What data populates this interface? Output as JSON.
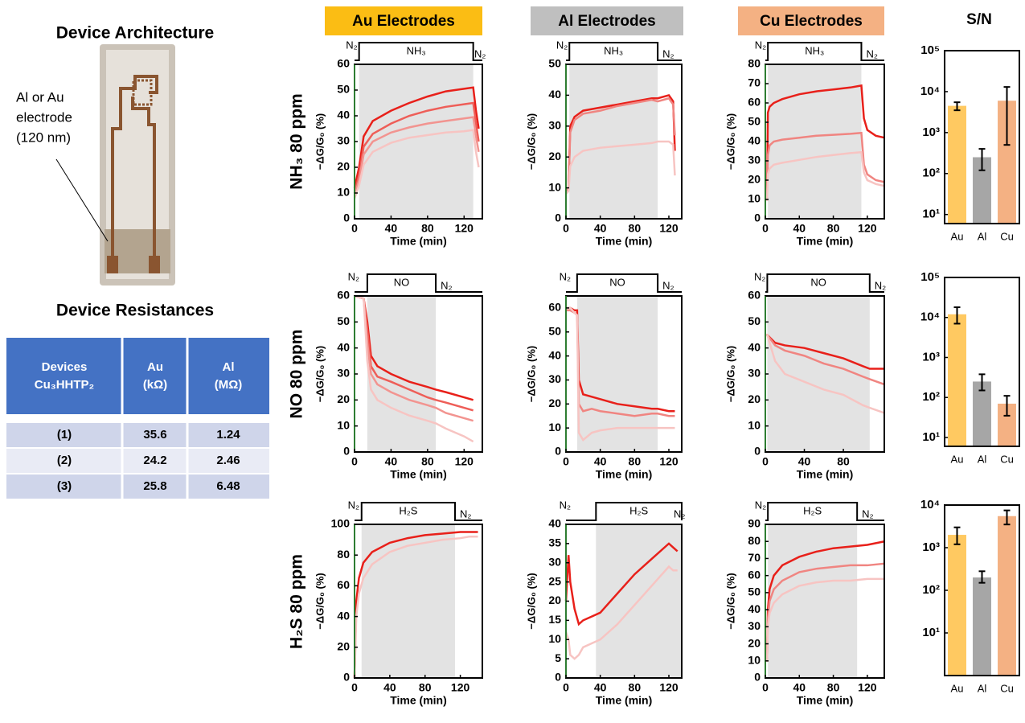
{
  "texts": {
    "architecture": "Device Architecture",
    "electrode_note": [
      "Al or Au",
      "electrode",
      "(120 nm)"
    ],
    "resistances": "Device Resistances"
  },
  "columns": [
    "Au Electrodes",
    "Al Electrodes",
    "Cu Electrodes",
    "S/N"
  ],
  "rows": [
    "NH₃ 80 ppm",
    "NO 80 ppm",
    "H₂S 80 ppm"
  ],
  "table": {
    "header": [
      [
        "Devices",
        "Cu₃HHTP₂"
      ],
      [
        "Au",
        "(kΩ)"
      ],
      [
        "Al",
        "(MΩ)"
      ]
    ],
    "rows": [
      [
        "(1)",
        "35.6",
        "1.24"
      ],
      [
        "(2)",
        "24.2",
        "2.46"
      ],
      [
        "(3)",
        "25.8",
        "6.48"
      ]
    ]
  },
  "chart_data": [
    {
      "type": "line",
      "xlabel": "Time (min)",
      "ylabel": "−ΔG/G₀ (%)",
      "gas_labels": [
        "N₂",
        "NH₃",
        "N₂"
      ],
      "exposure": [
        5,
        130
      ],
      "xlim": [
        0,
        140
      ],
      "xticks": [
        0,
        40,
        80,
        120
      ],
      "ylim": [
        0,
        60
      ],
      "yticks": [
        0,
        10,
        20,
        30,
        40,
        50,
        60
      ],
      "x": [
        0,
        5,
        10,
        20,
        40,
        60,
        80,
        100,
        120,
        130,
        133,
        136
      ],
      "series": [
        {
          "color": "#e8201a",
          "values": [
            12,
            20,
            32,
            38,
            42,
            45,
            47.5,
            49.5,
            50.5,
            51,
            42,
            35
          ]
        },
        {
          "color": "#ee5e58",
          "values": [
            10,
            17,
            28,
            33,
            37,
            40,
            42,
            43.5,
            44.5,
            45,
            37,
            30
          ]
        },
        {
          "color": "#f29490",
          "values": [
            9,
            15,
            25,
            30,
            33.5,
            35.5,
            37,
            38,
            39,
            39.5,
            32,
            26
          ]
        },
        {
          "color": "#f7c4c2",
          "values": [
            8,
            13,
            21,
            26,
            29.5,
            31.5,
            32.5,
            33.5,
            34,
            34.5,
            26,
            20
          ]
        }
      ]
    },
    {
      "type": "line",
      "xlabel": "Time (min)",
      "ylabel": "−ΔG/G₀ (%)",
      "gas_labels": [
        "N₂",
        "NH₃",
        "N₂"
      ],
      "exposure": [
        4,
        107
      ],
      "xlim": [
        0,
        135
      ],
      "xticks": [
        0,
        40,
        80,
        120
      ],
      "ylim": [
        0,
        50
      ],
      "yticks": [
        0,
        10,
        20,
        30,
        40,
        50
      ],
      "x": [
        0,
        3,
        5,
        10,
        20,
        40,
        60,
        80,
        100,
        107,
        120,
        125,
        127
      ],
      "series": [
        {
          "color": "#e8201a",
          "values": [
            9,
            10,
            30,
            33,
            35,
            36,
            37,
            38,
            39,
            39,
            40,
            38,
            22
          ]
        },
        {
          "color": "#f08581",
          "values": [
            9,
            10,
            28,
            32,
            34,
            35,
            36.5,
            37.5,
            38.5,
            38,
            39,
            37,
            27
          ]
        },
        {
          "color": "#f7c4c2",
          "values": [
            8,
            9,
            17,
            20,
            22,
            23,
            23.5,
            24,
            24.5,
            25,
            25,
            24,
            14
          ]
        }
      ]
    },
    {
      "type": "line",
      "xlabel": "Time (min)",
      "ylabel": "−ΔG/G₀ (%)",
      "gas_labels": [
        "N₂",
        "NH₃",
        "N₂"
      ],
      "exposure": [
        3,
        113
      ],
      "xlim": [
        0,
        140
      ],
      "xticks": [
        0,
        40,
        80,
        120
      ],
      "ylim": [
        0,
        80
      ],
      "yticks": [
        0,
        10,
        20,
        30,
        40,
        50,
        60,
        70,
        80
      ],
      "x": [
        0,
        2,
        3,
        5,
        10,
        20,
        40,
        60,
        80,
        100,
        113,
        116,
        120,
        130,
        140
      ],
      "series": [
        {
          "color": "#e8201a",
          "values": [
            10,
            10,
            55,
            58,
            60,
            62,
            64.5,
            66,
            67,
            68,
            69,
            52,
            46,
            43,
            42
          ]
        },
        {
          "color": "#f08581",
          "values": [
            10,
            10,
            33,
            38,
            40,
            41,
            42,
            43,
            43.5,
            44,
            44.5,
            28,
            23,
            20,
            19
          ]
        },
        {
          "color": "#f7c4c2",
          "values": [
            10,
            10,
            23,
            26,
            28,
            29,
            30.5,
            32,
            33,
            34,
            34.5,
            24,
            20,
            18,
            17
          ]
        }
      ]
    },
    {
      "type": "line",
      "xlabel": "Time (min)",
      "ylabel": "−ΔG/G₀ (%)",
      "gas_labels": [
        "N₂",
        "NO",
        "N₂"
      ],
      "exposure": [
        14,
        89
      ],
      "xlim": [
        0,
        140
      ],
      "xticks": [
        0,
        40,
        80,
        120
      ],
      "ylim": [
        0,
        60
      ],
      "yticks": [
        0,
        10,
        20,
        30,
        40,
        50,
        60
      ],
      "x": [
        0,
        10,
        14,
        18,
        25,
        40,
        60,
        80,
        89,
        100,
        120,
        130
      ],
      "series": [
        {
          "color": "#e8201a",
          "values": [
            60,
            59,
            50,
            37,
            33,
            30,
            27,
            25,
            24,
            23,
            21,
            20
          ]
        },
        {
          "color": "#ee5e58",
          "values": [
            60,
            59,
            47,
            33,
            29,
            27,
            24,
            21,
            20,
            19,
            17,
            16
          ]
        },
        {
          "color": "#f29490",
          "values": [
            60,
            59,
            42,
            30,
            26,
            23,
            20,
            18,
            17,
            15,
            13,
            12
          ]
        },
        {
          "color": "#f7c4c2",
          "values": [
            60,
            59,
            35,
            24,
            20,
            17,
            14,
            12,
            11,
            9,
            6,
            4
          ]
        }
      ]
    },
    {
      "type": "line",
      "xlabel": "Time (min)",
      "ylabel": "−ΔG/G₀ (%)",
      "gas_labels": [
        "N₂",
        "NO",
        "N₂"
      ],
      "exposure": [
        13,
        107
      ],
      "xlim": [
        0,
        135
      ],
      "xticks": [
        0,
        40,
        80,
        120
      ],
      "ylim": [
        0,
        65
      ],
      "yticks": [
        0,
        10,
        20,
        30,
        40,
        50,
        60
      ],
      "x": [
        0,
        5,
        10,
        13,
        15,
        20,
        30,
        40,
        60,
        80,
        100,
        107,
        120,
        127
      ],
      "series": [
        {
          "color": "#e8201a",
          "values": [
            60,
            60,
            59,
            59,
            30,
            24,
            23,
            22,
            20,
            19,
            18,
            18,
            17,
            17
          ]
        },
        {
          "color": "#f08581",
          "values": [
            59,
            59,
            58,
            57,
            20,
            17,
            18,
            17,
            16,
            15,
            16,
            16,
            15,
            15
          ]
        },
        {
          "color": "#f7c4c2",
          "values": [
            60,
            60,
            58,
            57,
            8,
            5,
            8,
            9,
            10,
            10,
            10,
            10,
            10,
            10
          ]
        }
      ]
    },
    {
      "type": "line",
      "xlabel": "Time (min)",
      "ylabel": "−ΔG/G₀ (%)",
      "gas_labels": [
        "N₂",
        "NO",
        "N₂"
      ],
      "exposure": [
        2,
        107
      ],
      "xlim": [
        0,
        122
      ],
      "xticks": [
        0,
        40,
        80
      ],
      "ylim": [
        0,
        60
      ],
      "yticks": [
        0,
        10,
        20,
        30,
        40,
        50,
        60
      ],
      "x": [
        0,
        2,
        10,
        20,
        40,
        60,
        80,
        100,
        107,
        122
      ],
      "series": [
        {
          "color": "#e8201a",
          "values": [
            45,
            45,
            42,
            41,
            40,
            38,
            36,
            33,
            32,
            32
          ]
        },
        {
          "color": "#f08581",
          "values": [
            45,
            45,
            41,
            39,
            37,
            34,
            32,
            29,
            28,
            26
          ]
        },
        {
          "color": "#f7c4c2",
          "values": [
            45,
            45,
            35,
            30,
            27,
            24,
            22,
            18,
            17,
            15
          ]
        }
      ]
    },
    {
      "type": "line",
      "xlabel": "Time (min)",
      "ylabel": "−ΔG/G₀ (%)",
      "gas_labels": [
        "N₂",
        "H₂S",
        "N₂"
      ],
      "exposure": [
        8,
        114
      ],
      "xlim": [
        0,
        145
      ],
      "xticks": [
        0,
        40,
        80,
        120
      ],
      "ylim": [
        0,
        100
      ],
      "yticks": [
        0,
        20,
        40,
        60,
        80,
        100
      ],
      "x": [
        0,
        2,
        5,
        10,
        20,
        40,
        60,
        80,
        100,
        120,
        130,
        140
      ],
      "series": [
        {
          "color": "#e8201a",
          "values": [
            0,
            50,
            65,
            75,
            82,
            88,
            91,
            93,
            94,
            95,
            95,
            95
          ]
        },
        {
          "color": "#f7c4c2",
          "values": [
            0,
            40,
            55,
            65,
            74,
            82,
            86,
            88,
            90,
            91,
            92,
            92
          ]
        }
      ]
    },
    {
      "type": "line",
      "xlabel": "Time (min)",
      "ylabel": "−ΔG/G₀ (%)",
      "gas_labels": [
        "N₂",
        "H₂S",
        "N₂"
      ],
      "exposure": [
        35,
        135
      ],
      "xlim": [
        0,
        135
      ],
      "xticks": [
        0,
        40,
        80,
        120
      ],
      "ylim": [
        0,
        40
      ],
      "yticks": [
        0,
        5,
        10,
        15,
        20,
        25,
        30,
        35,
        40
      ],
      "x": [
        0,
        3,
        5,
        10,
        15,
        20,
        30,
        40,
        60,
        80,
        100,
        120,
        125,
        130
      ],
      "series": [
        {
          "color": "#e8201a",
          "values": [
            20,
            32,
            25,
            18,
            14,
            15,
            16,
            17,
            22,
            27,
            31,
            35,
            34,
            33
          ]
        },
        {
          "color": "#f7c4c2",
          "values": [
            12,
            10,
            6,
            5,
            6,
            8,
            9,
            10,
            14,
            19,
            24,
            29,
            28,
            28
          ]
        }
      ]
    },
    {
      "type": "line",
      "xlabel": "Time (min)",
      "ylabel": "−ΔG/G₀ (%)",
      "gas_labels": [
        "N₂",
        "H₂S",
        "N₂"
      ],
      "exposure": [
        3,
        108
      ],
      "xlim": [
        0,
        140
      ],
      "xticks": [
        0,
        40,
        80,
        120
      ],
      "ylim": [
        0,
        90
      ],
      "yticks": [
        0,
        10,
        20,
        30,
        40,
        50,
        60,
        70,
        80,
        90
      ],
      "x": [
        0,
        2,
        3,
        5,
        10,
        20,
        40,
        60,
        80,
        100,
        120,
        140
      ],
      "series": [
        {
          "color": "#e8201a",
          "values": [
            10,
            10,
            40,
            52,
            60,
            66,
            71,
            74,
            76,
            77,
            78,
            80
          ]
        },
        {
          "color": "#f08581",
          "values": [
            10,
            10,
            35,
            45,
            52,
            57,
            62,
            64,
            65,
            66,
            66,
            67
          ]
        },
        {
          "color": "#f7c4c2",
          "values": [
            10,
            10,
            30,
            38,
            44,
            49,
            54,
            56,
            57,
            57,
            58,
            58
          ]
        }
      ]
    },
    {
      "type": "bar",
      "log_scale": true,
      "categories": [
        "Au",
        "Al",
        "Cu"
      ],
      "colors": [
        "#ffc961",
        "#a6a6a6",
        "#f4b183"
      ],
      "values": [
        4500,
        250,
        6000
      ],
      "error_range": [
        [
          3500,
          5500
        ],
        [
          120,
          400
        ],
        [
          500,
          13000
        ]
      ],
      "ylim": [
        6,
        100000
      ],
      "yticks": [
        {
          "value": 10,
          "label": "10¹"
        },
        {
          "value": 100,
          "label": "10²"
        },
        {
          "value": 1000,
          "label": "10³"
        },
        {
          "value": 10000,
          "label": "10⁴"
        },
        {
          "value": 100000,
          "label": "10⁵"
        }
      ]
    },
    {
      "type": "bar",
      "log_scale": true,
      "categories": [
        "Au",
        "Al",
        "Cu"
      ],
      "colors": [
        "#ffc961",
        "#a6a6a6",
        "#f4b183"
      ],
      "values": [
        12000,
        250,
        70
      ],
      "error_range": [
        [
          7000,
          18000
        ],
        [
          150,
          380
        ],
        [
          35,
          110
        ]
      ],
      "ylim": [
        6,
        100000
      ],
      "yticks": [
        {
          "value": 10,
          "label": "10¹"
        },
        {
          "value": 100,
          "label": "10²"
        },
        {
          "value": 1000,
          "label": "10³"
        },
        {
          "value": 10000,
          "label": "10⁴"
        },
        {
          "value": 100000,
          "label": "10⁵"
        }
      ]
    },
    {
      "type": "bar",
      "log_scale": true,
      "categories": [
        "Au",
        "Al",
        "Cu"
      ],
      "colors": [
        "#ffc961",
        "#a6a6a6",
        "#f4b183"
      ],
      "values": [
        2000,
        200,
        5500
      ],
      "error_range": [
        [
          1200,
          3000
        ],
        [
          150,
          280
        ],
        [
          3500,
          7500
        ]
      ],
      "ylim": [
        1,
        10000
      ],
      "yticks": [
        {
          "value": 10,
          "label": "10¹"
        },
        {
          "value": 100,
          "label": "10²"
        },
        {
          "value": 1000,
          "label": "10³"
        },
        {
          "value": 10000,
          "label": "10⁴"
        }
      ]
    }
  ]
}
